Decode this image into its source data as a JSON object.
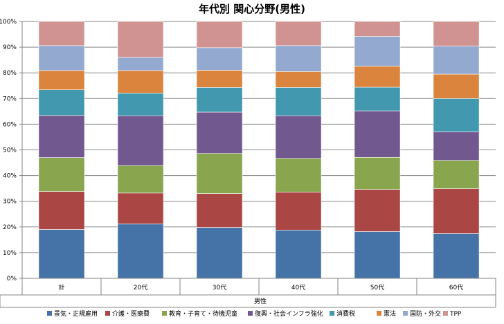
{
  "chart_data": {
    "type": "bar",
    "stacked": "percent",
    "title": "年代別 関心分野(男性)",
    "xlabel": "男性",
    "ylabel": "",
    "ylim": [
      0,
      100
    ],
    "y_ticks": [
      "0%",
      "10%",
      "20%",
      "30%",
      "40%",
      "50%",
      "60%",
      "70%",
      "80%",
      "90%",
      "100%"
    ],
    "grid": true,
    "legend_position": "bottom",
    "categories": [
      "計",
      "20代",
      "30代",
      "40代",
      "50代",
      "60代"
    ],
    "series": [
      {
        "name": "景気・正規雇用",
        "color": "#4572A7",
        "values": [
          19,
          21.2,
          19.8,
          18.8,
          18.2,
          17.4
        ]
      },
      {
        "name": "介護・医療費",
        "color": "#AA4643",
        "values": [
          14.8,
          12,
          13.2,
          14.8,
          16.4,
          17.5
        ]
      },
      {
        "name": "教育・子育て・待機児童",
        "color": "#89A54E",
        "values": [
          13.2,
          10.7,
          15.6,
          13.1,
          12.5,
          11
        ]
      },
      {
        "name": "復興・社会インフラ強化",
        "color": "#71588F",
        "values": [
          16.4,
          19.4,
          16.1,
          16.6,
          18.1,
          11.1
        ]
      },
      {
        "name": "消費税",
        "color": "#4198AF",
        "values": [
          10,
          8.8,
          9.6,
          11,
          9.2,
          13
        ]
      },
      {
        "name": "憲法",
        "color": "#DB843D",
        "values": [
          7.5,
          8.8,
          6.7,
          6.2,
          8.2,
          9.5
        ]
      },
      {
        "name": "国防・外交",
        "color": "#93A9CF",
        "values": [
          9.7,
          5.1,
          8.8,
          10.1,
          11.6,
          10.9
        ]
      },
      {
        "name": "TPP",
        "color": "#D19392",
        "values": [
          9.4,
          14,
          10.2,
          9.4,
          5.8,
          9.6
        ]
      }
    ]
  }
}
